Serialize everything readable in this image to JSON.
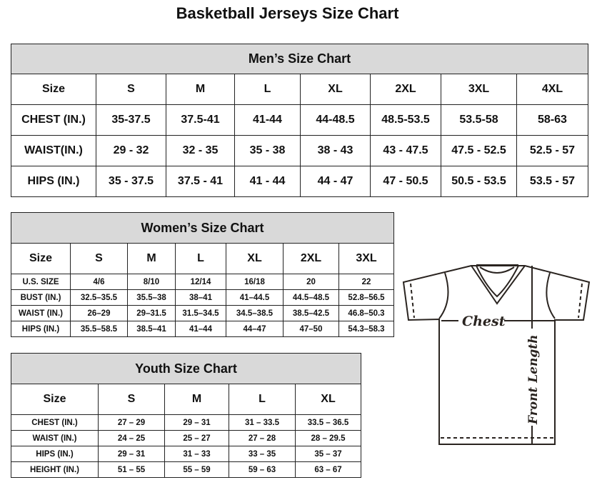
{
  "title": "Basketball Jerseys Size Chart",
  "men": {
    "title": "Men’s Size Chart",
    "header": [
      "Size",
      "S",
      "M",
      "L",
      "XL",
      "2XL",
      "3XL",
      "4XL"
    ],
    "rows": [
      [
        "CHEST (IN.)",
        "35-37.5",
        "37.5-41",
        "41-44",
        "44-48.5",
        "48.5-53.5",
        "53.5-58",
        "58-63"
      ],
      [
        "WAIST(IN.)",
        "29 - 32",
        "32 - 35",
        "35 - 38",
        "38 - 43",
        "43 - 47.5",
        "47.5 - 52.5",
        "52.5 - 57"
      ],
      [
        "HIPS (IN.)",
        "35 - 37.5",
        "37.5 - 41",
        "41 - 44",
        "44 - 47",
        "47 - 50.5",
        "50.5 - 53.5",
        "53.5 - 57"
      ]
    ]
  },
  "women": {
    "title": "Women’s Size Chart",
    "header": [
      "Size",
      "S",
      "M",
      "L",
      "XL",
      "2XL",
      "3XL"
    ],
    "rows": [
      [
        "U.S. SIZE",
        "4/6",
        "8/10",
        "12/14",
        "16/18",
        "20",
        "22"
      ],
      [
        "BUST (IN.)",
        "32.5–35.5",
        "35.5–38",
        "38–41",
        "41–44.5",
        "44.5–48.5",
        "52.8–56.5"
      ],
      [
        "WAIST (IN.)",
        "26–29",
        "29–31.5",
        "31.5–34.5",
        "34.5–38.5",
        "38.5–42.5",
        "46.8–50.3"
      ],
      [
        "HIPS (IN.)",
        "35.5–58.5",
        "38.5–41",
        "41–44",
        "44–47",
        "47–50",
        "54.3–58.3"
      ]
    ]
  },
  "youth": {
    "title": "Youth Size Chart",
    "header": [
      "Size",
      "S",
      "M",
      "L",
      "XL"
    ],
    "rows": [
      [
        "CHEST (IN.)",
        "27 – 29",
        "29 – 31",
        "31 – 33.5",
        "33.5 – 36.5"
      ],
      [
        "WAIST (IN.)",
        "24 – 25",
        "25 – 27",
        "27 – 28",
        "28 – 29.5"
      ],
      [
        "HIPS (IN.)",
        "29 – 31",
        "31 – 33",
        "33 – 35",
        "35 – 37"
      ],
      [
        "HEIGHT (IN.)",
        "51 – 55",
        "55 – 59",
        "59 – 63",
        "63 – 67"
      ]
    ]
  },
  "diagram": {
    "chest_label": "Chest",
    "length_label": "Front Length"
  }
}
